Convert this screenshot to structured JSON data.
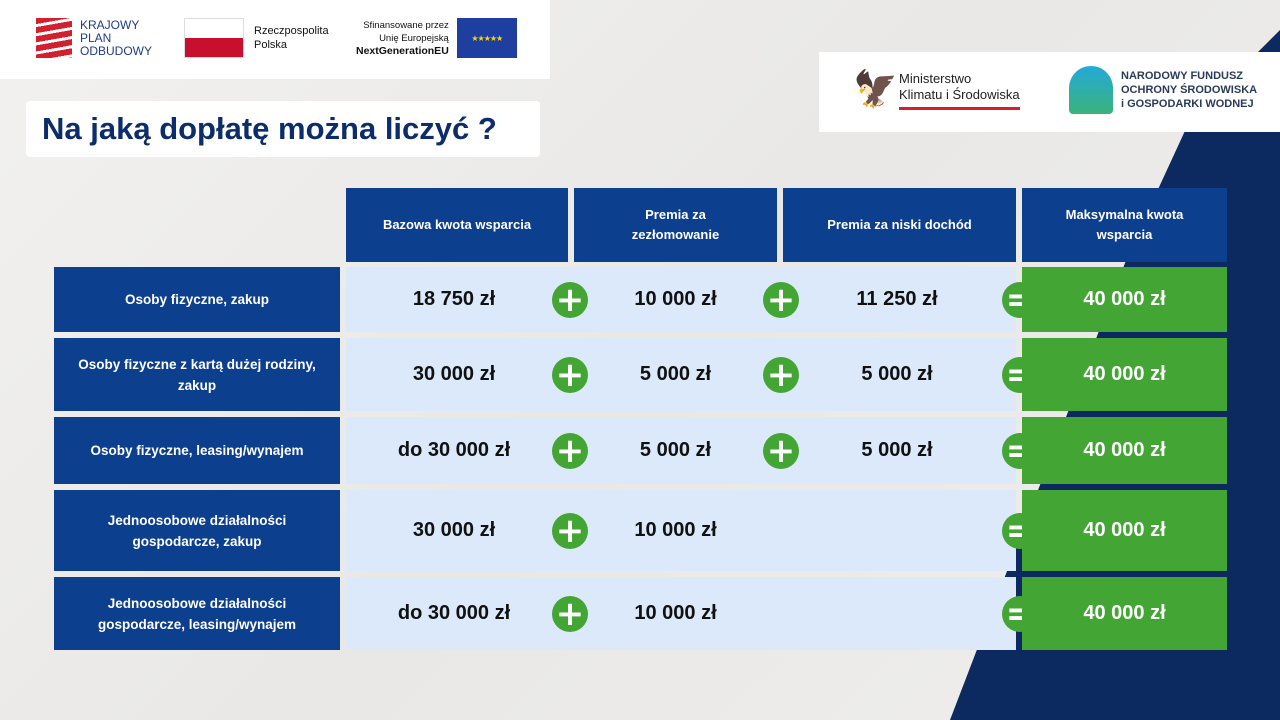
{
  "logos": {
    "kpo": [
      "KRAJOWY",
      "PLAN",
      "ODBUDOWY"
    ],
    "rp": [
      "Rzeczpospolita",
      "Polska"
    ],
    "eu": [
      "Sfinansowane przez",
      "Unię Europejską",
      "NextGenerationEU"
    ],
    "mkis": [
      "Ministerstwo",
      "Klimatu i Środowiska"
    ],
    "nfosigw": [
      "NARODOWY FUNDUSZ",
      "OCHRONY ŚRODOWISKA",
      "i GOSPODARKI WODNEJ"
    ]
  },
  "title": "Na jaką dopłatę można liczyć ?",
  "colors": {
    "header": "#0d3f8f",
    "cell": "#dce9fa",
    "total": "#43a534",
    "navy": "#0c2a5f"
  },
  "table": {
    "headers": [
      "Bazowa kwota wsparcia",
      "Premia za zezłomowanie",
      "Premia za niski dochód",
      "Maksymalna kwota wsparcia"
    ],
    "rows": [
      {
        "label": "Osoby fizyczne, zakup",
        "base": "18 750 zł",
        "scrap": "10 000 zł",
        "income": "11 250 zł",
        "max": "40 000 zł"
      },
      {
        "label": "Osoby fizyczne z kartą dużej rodziny, zakup",
        "base": "30 000 zł",
        "scrap": "5 000 zł",
        "income": "5 000 zł",
        "max": "40 000 zł"
      },
      {
        "label": "Osoby fizyczne, leasing/wynajem",
        "base": "do 30 000 zł",
        "scrap": "5 000 zł",
        "income": "5 000 zł",
        "max": "40 000 zł"
      },
      {
        "label": "Jednoosobowe działalności gospodarcze, zakup",
        "base": "30 000 zł",
        "scrap": "10 000 zł",
        "income": "",
        "max": "40 000 zł"
      },
      {
        "label": "Jednoosobowe działalności gospodarcze, leasing/wynajem",
        "base": "do 30 000 zł",
        "scrap": "10 000 zł",
        "income": "",
        "max": "40 000 zł"
      }
    ],
    "plus": "+",
    "equals": "="
  }
}
